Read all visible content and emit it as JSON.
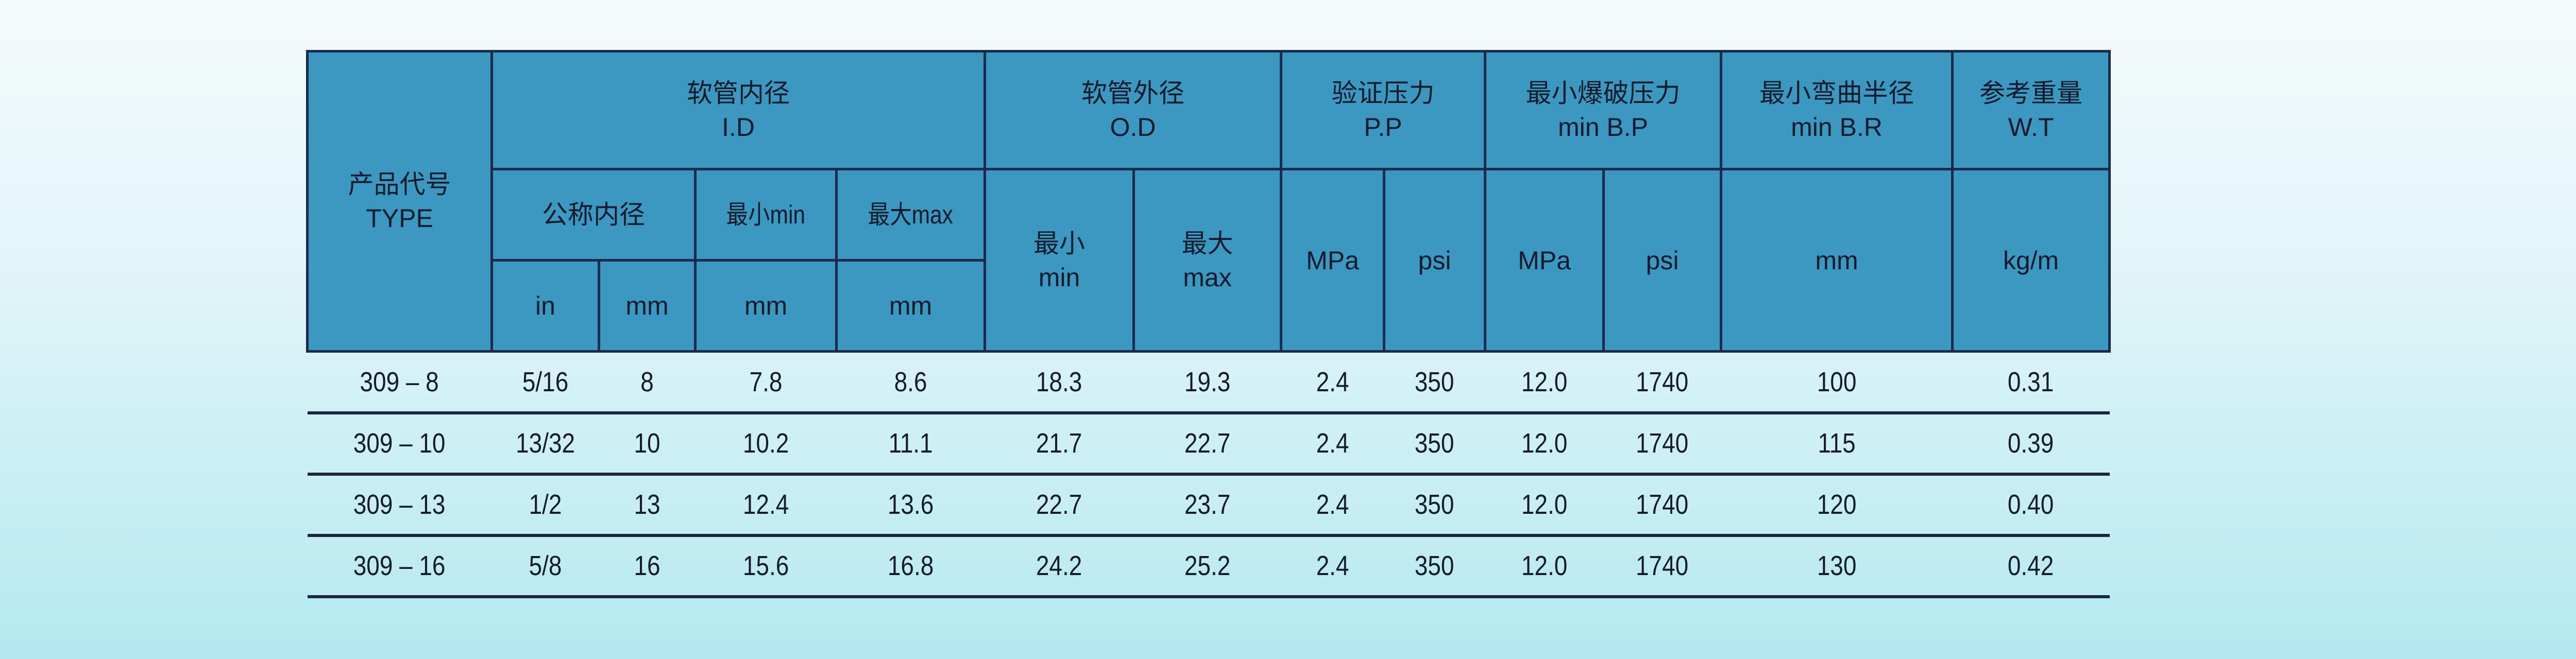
{
  "header": {
    "type": {
      "cn": "产品代号",
      "en": "TYPE"
    },
    "id": {
      "cn": "软管内径",
      "en": "I.D",
      "nominal": "公称内径",
      "min": "最小min",
      "max": "最大max",
      "unit_in": "in",
      "unit_mm": "mm",
      "unit_min_mm": "mm",
      "unit_max_mm": "mm"
    },
    "od": {
      "cn": "软管外径",
      "en": "O.D",
      "min_cn": "最小",
      "min_en": "min",
      "max_cn": "最大",
      "max_en": "max"
    },
    "pp": {
      "cn": "验证压力",
      "en": "P.P",
      "mpa": "MPa",
      "psi": "psi"
    },
    "bp": {
      "cn": "最小爆破压力",
      "en": "min B.P",
      "mpa": "MPa",
      "psi": "psi"
    },
    "br": {
      "cn": "最小弯曲半径",
      "en": "min B.R",
      "unit": "mm"
    },
    "wt": {
      "cn": "参考重量",
      "en": "W.T",
      "unit": "kg/m"
    }
  },
  "rows": [
    [
      "309 – 8",
      "5/16",
      "8",
      "7.8",
      "8.6",
      "18.3",
      "19.3",
      "2.4",
      "350",
      "12.0",
      "1740",
      "100",
      "0.31"
    ],
    [
      "309 – 10",
      "13/32",
      "10",
      "10.2",
      "11.1",
      "21.7",
      "22.7",
      "2.4",
      "350",
      "12.0",
      "1740",
      "115",
      "0.39"
    ],
    [
      "309 – 13",
      "1/2",
      "13",
      "12.4",
      "13.6",
      "22.7",
      "23.7",
      "2.4",
      "350",
      "12.0",
      "1740",
      "120",
      "0.40"
    ],
    [
      "309 – 16",
      "5/8",
      "16",
      "15.6",
      "16.8",
      "24.2",
      "25.2",
      "2.4",
      "350",
      "12.0",
      "1740",
      "130",
      "0.42"
    ]
  ],
  "colors": {
    "header_bg": "#3b98c0",
    "border": "#1b2a48"
  }
}
